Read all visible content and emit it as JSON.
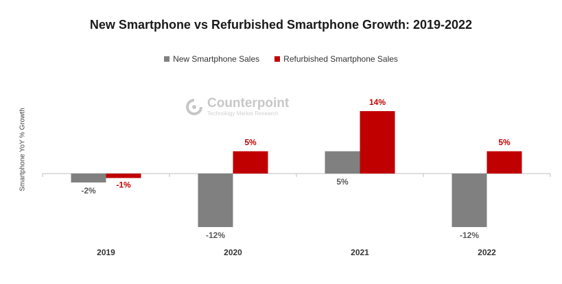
{
  "chart_data": {
    "type": "bar",
    "title": "New Smartphone vs Refurbished Smartphone Growth: 2019-2022",
    "ylabel": "Smartphone YoY % Growth",
    "xlabel": "",
    "categories": [
      "2019",
      "2020",
      "2021",
      "2022"
    ],
    "series": [
      {
        "name": "New Smartphone Sales",
        "values": [
          -2,
          -12,
          5,
          -12
        ],
        "labels": [
          "-2%",
          "-12%",
          "5%",
          "-12%"
        ]
      },
      {
        "name": "Refurbished Smartphone Sales",
        "values": [
          -1,
          5,
          14,
          5
        ],
        "labels": [
          "-1%",
          "5%",
          "14%",
          "5%"
        ]
      }
    ],
    "ylim": [
      -14,
      16
    ],
    "grid": false,
    "legend": "top-center",
    "colors": {
      "new": "#808080",
      "refurbished": "#c00000",
      "new_label": "#595959",
      "refurbished_label": "#c00000",
      "axis": "#bfbfbf"
    }
  },
  "watermark": {
    "brand": "Counterpoint",
    "tagline": "Technology Market Research"
  }
}
